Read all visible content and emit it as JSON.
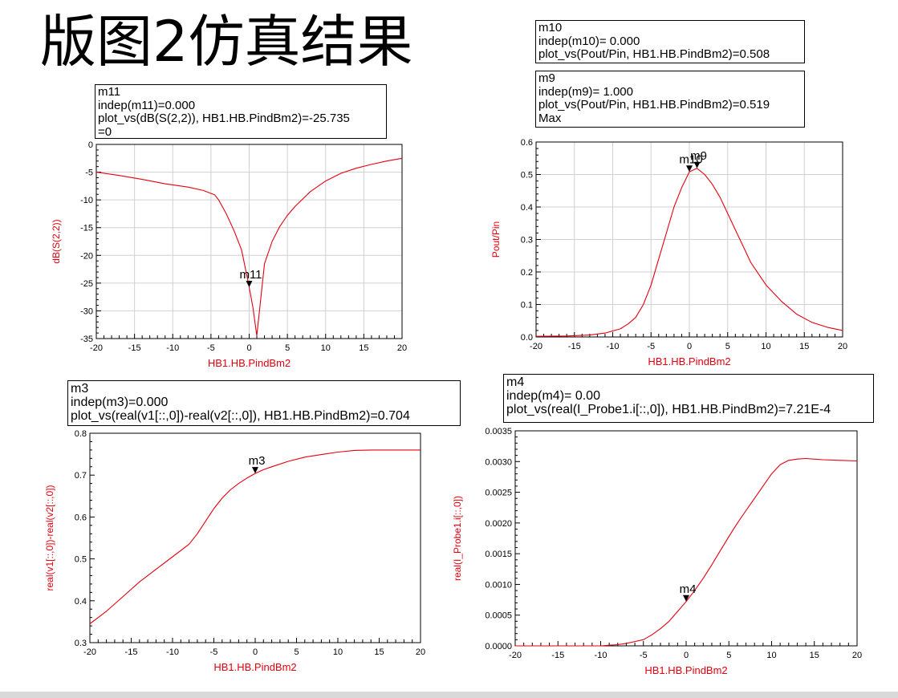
{
  "page": {
    "title": "版图2仿真结果"
  },
  "colors": {
    "trace": "#e4000f",
    "axis_label": "#e4000f",
    "grid": "#d0d0d0",
    "frame": "#000000"
  },
  "markers": {
    "m11": {
      "name": "m11",
      "indep": "indep(m11)=0.000",
      "value": "plot_vs(dB(S(2,2)), HB1.HB.PindBm2)=-25.735",
      "extra": "=0"
    },
    "m10": {
      "name": "m10",
      "indep": "indep(m10)= 0.000",
      "value": "plot_vs(Pout/Pin, HB1.HB.PindBm2)=0.508"
    },
    "m9": {
      "name": "m9",
      "indep": "indep(m9)= 1.000",
      "value": "plot_vs(Pout/Pin, HB1.HB.PindBm2)=0.519",
      "extra": "Max"
    },
    "m3": {
      "name": "m3",
      "indep": "indep(m3)=0.000",
      "value": "plot_vs(real(v1[::,0])-real(v2[::,0]), HB1.HB.PindBm2)=0.704"
    },
    "m4": {
      "name": "m4",
      "indep": "indep(m4)= 0.00",
      "value": "plot_vs(real(I_Probe1.i[::,0]), HB1.HB.PindBm2)=7.21E-4"
    }
  },
  "chart_data": [
    {
      "id": "s22",
      "type": "line",
      "xlabel": "HB1.HB.PindBm2",
      "ylabel": "dB(S(2,2))",
      "xlim": [
        -20,
        20
      ],
      "ylim": [
        -35,
        0
      ],
      "xticks": [
        -20,
        -15,
        -10,
        -5,
        0,
        5,
        10,
        15,
        20
      ],
      "xtick_labels": [
        "-20",
        "-15",
        "-10",
        "-5",
        "0",
        "5",
        "10",
        "15",
        "20"
      ],
      "yticks": [
        -35,
        -30,
        -25,
        -20,
        -15,
        -10,
        -5,
        0
      ],
      "ytick_labels": [
        "-35",
        "-30",
        "-25",
        "-20",
        "-15",
        "-10",
        "-5",
        "0"
      ],
      "grid": true,
      "series": [
        {
          "x": [
            -20,
            -17,
            -14,
            -11,
            -8,
            -6,
            -4.5,
            -4,
            -3,
            -2,
            -1,
            0,
            0.5,
            1,
            1.5,
            2,
            3,
            4,
            5,
            6,
            8,
            10,
            12,
            14,
            16,
            18,
            20
          ],
          "y": [
            -5,
            -5.6,
            -6.3,
            -7.1,
            -7.7,
            -8.3,
            -9.1,
            -10,
            -12.5,
            -15.5,
            -19,
            -25.7,
            -29.5,
            -34.5,
            -28,
            -21.5,
            -17.5,
            -14.8,
            -12.8,
            -11.2,
            -8.5,
            -6.6,
            -5.2,
            -4.3,
            -3.6,
            -3,
            -2.5
          ]
        }
      ],
      "markers": [
        {
          "label": "m11",
          "x": 0,
          "y": -25.735
        }
      ]
    },
    {
      "id": "gain",
      "type": "line",
      "xlabel": "HB1.HB.PindBm2",
      "ylabel": "Pout/Pin",
      "xlim": [
        -20,
        20
      ],
      "ylim": [
        0,
        0.6
      ],
      "xticks": [
        -20,
        -15,
        -10,
        -5,
        0,
        5,
        10,
        15,
        20
      ],
      "xtick_labels": [
        "-20",
        "-15",
        "-10",
        "-5",
        "0",
        "5",
        "10",
        "15",
        "20"
      ],
      "yticks": [
        0,
        0.1,
        0.2,
        0.3,
        0.4,
        0.5,
        0.6
      ],
      "ytick_labels": [
        "0.0",
        "0.1",
        "0.2",
        "0.3",
        "0.4",
        "0.5",
        "0.6"
      ],
      "grid": true,
      "series": [
        {
          "x": [
            -20,
            -16,
            -13,
            -11,
            -9,
            -8,
            -7,
            -6,
            -5,
            -4,
            -3,
            -2,
            -1,
            0,
            1,
            2,
            3,
            4,
            5,
            6,
            7,
            8,
            10,
            12,
            14,
            16,
            18,
            20
          ],
          "y": [
            0.002,
            0.003,
            0.006,
            0.012,
            0.025,
            0.04,
            0.06,
            0.1,
            0.16,
            0.24,
            0.32,
            0.4,
            0.46,
            0.508,
            0.519,
            0.5,
            0.47,
            0.43,
            0.38,
            0.33,
            0.28,
            0.23,
            0.16,
            0.11,
            0.07,
            0.045,
            0.03,
            0.02
          ]
        }
      ],
      "markers": [
        {
          "label": "m10",
          "x": 0,
          "y": 0.508
        },
        {
          "label": "m9",
          "x": 1,
          "y": 0.519
        }
      ]
    },
    {
      "id": "vdiff",
      "type": "line",
      "xlabel": "HB1.HB.PindBm2",
      "ylabel": "real(v1[::,0])-real(v2[::,0])",
      "xlim": [
        -20,
        20
      ],
      "ylim": [
        0.3,
        0.8
      ],
      "xticks": [
        -20,
        -15,
        -10,
        -5,
        0,
        5,
        10,
        15,
        20
      ],
      "xtick_labels": [
        "-20",
        "-15",
        "-10",
        "-5",
        "0",
        "5",
        "10",
        "15",
        "20"
      ],
      "yticks": [
        0.3,
        0.4,
        0.5,
        0.6,
        0.7,
        0.8
      ],
      "ytick_labels": [
        "0.3",
        "0.4",
        "0.5",
        "0.6",
        "0.7",
        "0.8"
      ],
      "grid": false,
      "series": [
        {
          "x": [
            -20,
            -18,
            -16,
            -14,
            -12,
            -10,
            -8,
            -7,
            -6,
            -5,
            -4,
            -3,
            -2,
            -1,
            0,
            1,
            2,
            4,
            6,
            8,
            10,
            12,
            14,
            16,
            18,
            20
          ],
          "y": [
            0.345,
            0.375,
            0.41,
            0.445,
            0.475,
            0.505,
            0.535,
            0.56,
            0.59,
            0.62,
            0.645,
            0.665,
            0.68,
            0.693,
            0.704,
            0.713,
            0.72,
            0.733,
            0.743,
            0.749,
            0.755,
            0.759,
            0.76,
            0.76,
            0.76,
            0.76
          ]
        }
      ],
      "markers": [
        {
          "label": "m3",
          "x": 0,
          "y": 0.704
        }
      ]
    },
    {
      "id": "iprobe",
      "type": "line",
      "xlabel": "HB1.HB.PindBm2",
      "ylabel": "real(I_Probe1.i[::,0])",
      "xlim": [
        -20,
        20
      ],
      "ylim": [
        0,
        0.0035
      ],
      "xticks": [
        -20,
        -15,
        -10,
        -5,
        0,
        5,
        10,
        15,
        20
      ],
      "xtick_labels": [
        "-20",
        "-15",
        "-10",
        "-5",
        "0",
        "5",
        "10",
        "15",
        "20"
      ],
      "yticks": [
        0,
        0.0005,
        0.001,
        0.0015,
        0.002,
        0.0025,
        0.003,
        0.0035
      ],
      "ytick_labels": [
        "0.0000",
        "0.0005",
        "0.0010",
        "0.0015",
        "0.0020",
        "0.0025",
        "0.0030",
        "0.0035"
      ],
      "grid": false,
      "series": [
        {
          "x": [
            -20,
            -15,
            -11,
            -10,
            -9,
            -8,
            -7,
            -6,
            -5,
            -4,
            -3,
            -2,
            -1,
            0,
            1,
            2,
            3,
            4,
            5,
            6,
            7,
            8,
            9,
            10,
            11,
            12,
            13,
            14,
            16,
            18,
            20
          ],
          "y": [
            0,
            0,
            0,
            0,
            1e-05,
            2e-05,
            4e-05,
            7e-05,
            0.0001,
            0.00018,
            0.00028,
            0.0004,
            0.00056,
            0.000721,
            0.0009,
            0.0011,
            0.00132,
            0.00155,
            0.00178,
            0.002,
            0.0022,
            0.0024,
            0.0026,
            0.0028,
            0.00295,
            0.00302,
            0.00304,
            0.00305,
            0.00303,
            0.00302,
            0.00301
          ]
        }
      ],
      "markers": [
        {
          "label": "m4",
          "x": 0,
          "y": 0.000721
        }
      ]
    }
  ]
}
